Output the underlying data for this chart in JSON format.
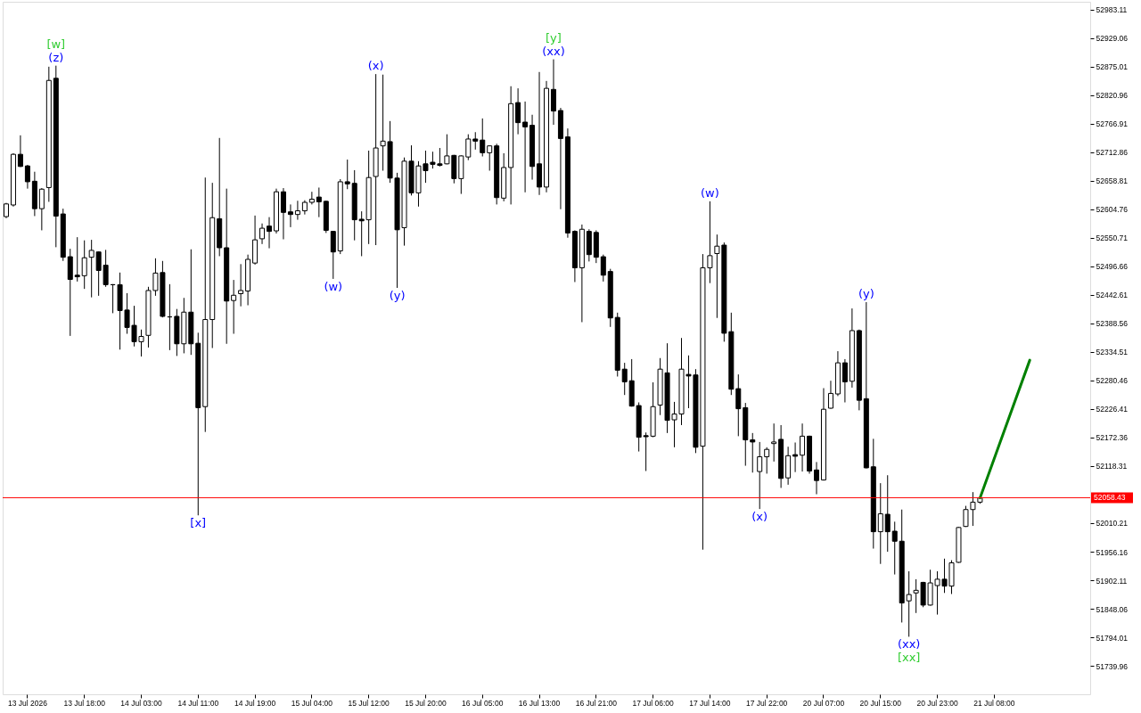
{
  "chart_data": {
    "type": "candlestick",
    "categories": [
      null,
      null,
      null,
      "13 Jul 2026",
      null,
      null,
      null,
      null,
      null,
      null,
      null,
      "13 Jul 18:00",
      null,
      null,
      null,
      null,
      null,
      null,
      null,
      "14 Jul 03:00",
      null,
      null,
      null,
      null,
      null,
      null,
      null,
      "14 Jul 11:00",
      null,
      null,
      null,
      null,
      null,
      null,
      null,
      "14 Jul 19:00",
      null,
      null,
      null,
      null,
      null,
      null,
      null,
      "15 Jul 04:00",
      null,
      null,
      null,
      null,
      null,
      null,
      null,
      "15 Jul 12:00",
      null,
      null,
      null,
      null,
      null,
      null,
      null,
      "15 Jul 20:00",
      null,
      null,
      null,
      null,
      null,
      null,
      null,
      "16 Jul 05:00",
      null,
      null,
      null,
      null,
      null,
      null,
      null,
      "16 Jul 13:00",
      null,
      null,
      null,
      null,
      null,
      null,
      null,
      "16 Jul 21:00",
      null,
      null,
      null,
      null,
      null,
      null,
      null,
      "17 Jul 06:00",
      null,
      null,
      null,
      null,
      null,
      null,
      null,
      "17 Jul 14:00",
      null,
      null,
      null,
      null,
      null,
      null,
      null,
      "17 Jul 22:00",
      null,
      null,
      null,
      null,
      null,
      null,
      null,
      "20 Jul 07:00",
      null,
      null,
      null,
      null,
      null,
      null,
      null,
      "20 Jul 15:00",
      null,
      null,
      null,
      null,
      null,
      null,
      null,
      "20 Jul 23:00",
      null,
      null,
      null,
      null,
      null,
      null,
      null,
      "21 Jul 08:00",
      null,
      null,
      null,
      null,
      null,
      null,
      null,
      null,
      null,
      null,
      null,
      null,
      null
    ],
    "ohlc": [
      [
        52591,
        52617,
        52588,
        52615
      ],
      [
        52613,
        52711,
        52610,
        52709
      ],
      [
        52709,
        52745,
        52685,
        52686
      ],
      [
        52687,
        52689,
        52644,
        52657
      ],
      [
        52658,
        52676,
        52592,
        52606
      ],
      [
        52606,
        52645,
        52565,
        52643
      ],
      [
        52646,
        52875,
        52619,
        52849
      ],
      [
        52853,
        52877,
        52533,
        52592
      ],
      [
        52596,
        52606,
        52507,
        52514
      ],
      [
        52515,
        52530,
        52365,
        52472
      ],
      [
        52480,
        52552,
        52468,
        52477
      ],
      [
        52479,
        52546,
        52454,
        52513
      ],
      [
        52514,
        52547,
        52438,
        52527
      ],
      [
        52524,
        52525,
        52441,
        52489
      ],
      [
        52499,
        52528,
        52458,
        52462
      ],
      [
        52462,
        52463,
        52408,
        52462
      ],
      [
        52462,
        52485,
        52339,
        52413
      ],
      [
        52414,
        52446,
        52369,
        52381
      ],
      [
        52385,
        52422,
        52345,
        52354
      ],
      [
        52354,
        52377,
        52326,
        52364
      ],
      [
        52366,
        52458,
        52343,
        52451
      ],
      [
        52451,
        52512,
        52441,
        52484
      ],
      [
        52485,
        52507,
        52400,
        52402
      ],
      [
        52401,
        52463,
        52338,
        52401
      ],
      [
        52402,
        52416,
        52327,
        52350
      ],
      [
        52350,
        52437,
        52332,
        52410
      ],
      [
        52410,
        52529,
        52329,
        52350
      ],
      [
        52351,
        52371,
        52025,
        52229
      ],
      [
        52231,
        52665,
        52183,
        52396
      ],
      [
        52396,
        52655,
        52342,
        52589
      ],
      [
        52587,
        52740,
        52516,
        52532
      ],
      [
        52532,
        52644,
        52350,
        52431
      ],
      [
        52432,
        52471,
        52369,
        52442
      ],
      [
        52445,
        52501,
        52421,
        52451
      ],
      [
        52450,
        52519,
        52423,
        52510
      ],
      [
        52503,
        52593,
        52500,
        52547
      ],
      [
        52549,
        52578,
        52539,
        52569
      ],
      [
        52573,
        52590,
        52531,
        52563
      ],
      [
        52564,
        52644,
        52559,
        52638
      ],
      [
        52638,
        52645,
        52548,
        52599
      ],
      [
        52600,
        52614,
        52571,
        52595
      ],
      [
        52595,
        52621,
        52585,
        52602
      ],
      [
        52602,
        52622,
        52595,
        52618
      ],
      [
        52618,
        52638,
        52614,
        52624
      ],
      [
        52628,
        52646,
        52590,
        52619
      ],
      [
        52620,
        52621,
        52560,
        52565
      ],
      [
        52563,
        52564,
        52473,
        52524
      ],
      [
        52526,
        52662,
        52520,
        52657
      ],
      [
        52657,
        52699,
        52643,
        52653
      ],
      [
        52654,
        52679,
        52546,
        52585
      ],
      [
        52586,
        52601,
        52516,
        52583
      ],
      [
        52585,
        52716,
        52539,
        52665
      ],
      [
        52667,
        52861,
        52537,
        52721
      ],
      [
        52725,
        52860,
        52678,
        52734
      ],
      [
        52733,
        52772,
        52655,
        52664
      ],
      [
        52664,
        52674,
        52456,
        52566
      ],
      [
        52570,
        52703,
        52536,
        52696
      ],
      [
        52696,
        52726,
        52631,
        52636
      ],
      [
        52636,
        52696,
        52610,
        52687
      ],
      [
        52691,
        52716,
        52655,
        52678
      ],
      [
        52694,
        52714,
        52682,
        52690
      ],
      [
        52691,
        52721,
        52686,
        52688
      ],
      [
        52691,
        52747,
        52690,
        52706
      ],
      [
        52707,
        52708,
        52654,
        52663
      ],
      [
        52663,
        52707,
        52634,
        52706
      ],
      [
        52704,
        52747,
        52698,
        52738
      ],
      [
        52738,
        52751,
        52718,
        52734
      ],
      [
        52736,
        52777,
        52705,
        52712
      ],
      [
        52712,
        52726,
        52678,
        52725
      ],
      [
        52725,
        52729,
        52614,
        52627
      ],
      [
        52626,
        52711,
        52620,
        52684
      ],
      [
        52684,
        52838,
        52614,
        52805
      ],
      [
        52807,
        52834,
        52747,
        52769
      ],
      [
        52770,
        52809,
        52637,
        52761
      ],
      [
        52764,
        52784,
        52661,
        52686
      ],
      [
        52691,
        52865,
        52632,
        52647
      ],
      [
        52647,
        52848,
        52637,
        52834
      ],
      [
        52832,
        52889,
        52765,
        52791
      ],
      [
        52792,
        52797,
        52605,
        52739
      ],
      [
        52742,
        52758,
        52551,
        52560
      ],
      [
        52563,
        52565,
        52467,
        52494
      ],
      [
        52494,
        52576,
        52391,
        52567
      ],
      [
        52563,
        52567,
        52506,
        52519
      ],
      [
        52561,
        52565,
        52503,
        52514
      ],
      [
        52515,
        52519,
        52468,
        52480
      ],
      [
        52487,
        52492,
        52382,
        52399
      ],
      [
        52400,
        52409,
        52288,
        52300
      ],
      [
        52302,
        52314,
        52253,
        52278
      ],
      [
        52280,
        52321,
        52231,
        52232
      ],
      [
        52233,
        52239,
        52146,
        52173
      ],
      [
        52176,
        52182,
        52109,
        52174
      ],
      [
        52175,
        52277,
        52173,
        52231
      ],
      [
        52234,
        52323,
        52215,
        52302
      ],
      [
        52295,
        52351,
        52181,
        52205
      ],
      [
        52206,
        52240,
        52154,
        52217
      ],
      [
        52217,
        52361,
        52196,
        52302
      ],
      [
        52292,
        52328,
        52228,
        52289
      ],
      [
        52291,
        52302,
        52143,
        52154
      ],
      [
        52156,
        52520,
        51960,
        52494
      ],
      [
        52494,
        52620,
        52465,
        52517
      ],
      [
        52521,
        52557,
        52399,
        52535
      ],
      [
        52537,
        52542,
        52354,
        52370
      ],
      [
        52373,
        52409,
        52253,
        52264
      ],
      [
        52265,
        52292,
        52175,
        52227
      ],
      [
        52229,
        52238,
        52119,
        52168
      ],
      [
        52168,
        52181,
        52106,
        52164
      ],
      [
        52108,
        52164,
        52037,
        52136
      ],
      [
        52136,
        52154,
        52104,
        52150
      ],
      [
        52161,
        52199,
        52127,
        52164
      ],
      [
        52169,
        52196,
        52077,
        52095
      ],
      [
        52096,
        52155,
        52083,
        52138
      ],
      [
        52140,
        52163,
        52107,
        52137
      ],
      [
        52139,
        52199,
        52108,
        52175
      ],
      [
        52175,
        52176,
        52104,
        52109
      ],
      [
        52111,
        52126,
        52065,
        52091
      ],
      [
        52092,
        52266,
        52091,
        52226
      ],
      [
        52228,
        52280,
        52227,
        52256
      ],
      [
        52255,
        52336,
        52251,
        52314
      ],
      [
        52314,
        52321,
        52239,
        52278
      ],
      [
        52279,
        52417,
        52267,
        52375
      ],
      [
        52375,
        52377,
        52224,
        52243
      ],
      [
        52246,
        52429,
        52114,
        52115
      ],
      [
        52117,
        52170,
        51962,
        51994
      ],
      [
        51994,
        52086,
        51933,
        52028
      ],
      [
        52027,
        52101,
        51956,
        51994
      ],
      [
        51995,
        52013,
        51913,
        51976
      ],
      [
        51976,
        52036,
        51822,
        51859
      ],
      [
        51863,
        51919,
        51795,
        51875
      ],
      [
        51878,
        51904,
        51840,
        51883
      ],
      [
        51898,
        51899,
        51851,
        51855
      ],
      [
        51855,
        51922,
        51854,
        51897
      ],
      [
        51892,
        51919,
        51837,
        51904
      ],
      [
        51904,
        51943,
        51878,
        51891
      ],
      [
        51891,
        51940,
        51876,
        51935
      ],
      [
        51936,
        52003,
        51935,
        52002
      ],
      [
        52004,
        52043,
        52003,
        52036
      ],
      [
        52036,
        52069,
        52005,
        52050
      ],
      [
        52050,
        52059,
        52047,
        52058
      ],
      null,
      null,
      null,
      null,
      null,
      null,
      null,
      null,
      null,
      null,
      null,
      null,
      null,
      null,
      null
    ],
    "series": [
      {
        "type": "line",
        "color": "#008000",
        "values": [
          null,
          null,
          null,
          null,
          null,
          null,
          null,
          null,
          null,
          null,
          null,
          null,
          null,
          null,
          null,
          null,
          null,
          null,
          null,
          null,
          null,
          null,
          null,
          null,
          null,
          null,
          null,
          null,
          null,
          null,
          null,
          null,
          null,
          null,
          null,
          null,
          null,
          null,
          null,
          null,
          null,
          null,
          null,
          null,
          null,
          null,
          null,
          null,
          null,
          null,
          null,
          null,
          null,
          null,
          null,
          null,
          null,
          null,
          null,
          null,
          null,
          null,
          null,
          null,
          null,
          null,
          null,
          null,
          null,
          null,
          null,
          null,
          null,
          null,
          null,
          null,
          null,
          null,
          null,
          null,
          null,
          null,
          null,
          null,
          null,
          null,
          null,
          null,
          null,
          null,
          null,
          null,
          null,
          null,
          null,
          null,
          null,
          null,
          null,
          null,
          null,
          null,
          null,
          null,
          null,
          null,
          null,
          null,
          null,
          null,
          null,
          null,
          null,
          null,
          null,
          null,
          null,
          null,
          null,
          null,
          null,
          null,
          null,
          null,
          null,
          null,
          null,
          null,
          null,
          null,
          null,
          null,
          null,
          null,
          null,
          null,
          null,
          52058,
          null,
          null,
          null,
          null,
          null,
          null,
          52319,
          null,
          null,
          null,
          null,
          null,
          null,
          null,
          null
        ]
      }
    ],
    "ylim": [
      51686,
      52998
    ],
    "yticks": [
      51739.96,
      51794.01,
      51848.06,
      51902.11,
      51956.16,
      52010.21,
      52118.31,
      52172.36,
      52226.41,
      52280.46,
      52334.51,
      52388.56,
      52442.61,
      52496.66,
      52550.71,
      52604.76,
      52658.81,
      52712.86,
      52766.91,
      52820.96,
      52875.01,
      52929.06,
      52983.11
    ],
    "ref_lines": [
      {
        "axis": "y",
        "value": 52058.43,
        "label": "52058.43",
        "color": "#ff0000"
      }
    ],
    "annotations": [
      {
        "text": "(z)",
        "y": 52877
      },
      {
        "text": "[w]",
        "y": 52877
      },
      {
        "text": "[x]",
        "y": 52025
      },
      {
        "text": "(w)",
        "y": 52473
      },
      {
        "text": "(x)",
        "y": 52861
      },
      {
        "text": "(y)",
        "y": 52456
      },
      {
        "text": "(xx)",
        "y": 52889
      },
      {
        "text": "[y]",
        "y": 52889
      },
      {
        "text": "(w)",
        "y": 52620
      },
      {
        "text": "(x)",
        "y": 52037
      },
      {
        "text": "(y)",
        "y": 52429
      },
      {
        "text": "(xx)",
        "y": 51795
      },
      {
        "text": "[xx]",
        "y": 51795
      }
    ]
  }
}
